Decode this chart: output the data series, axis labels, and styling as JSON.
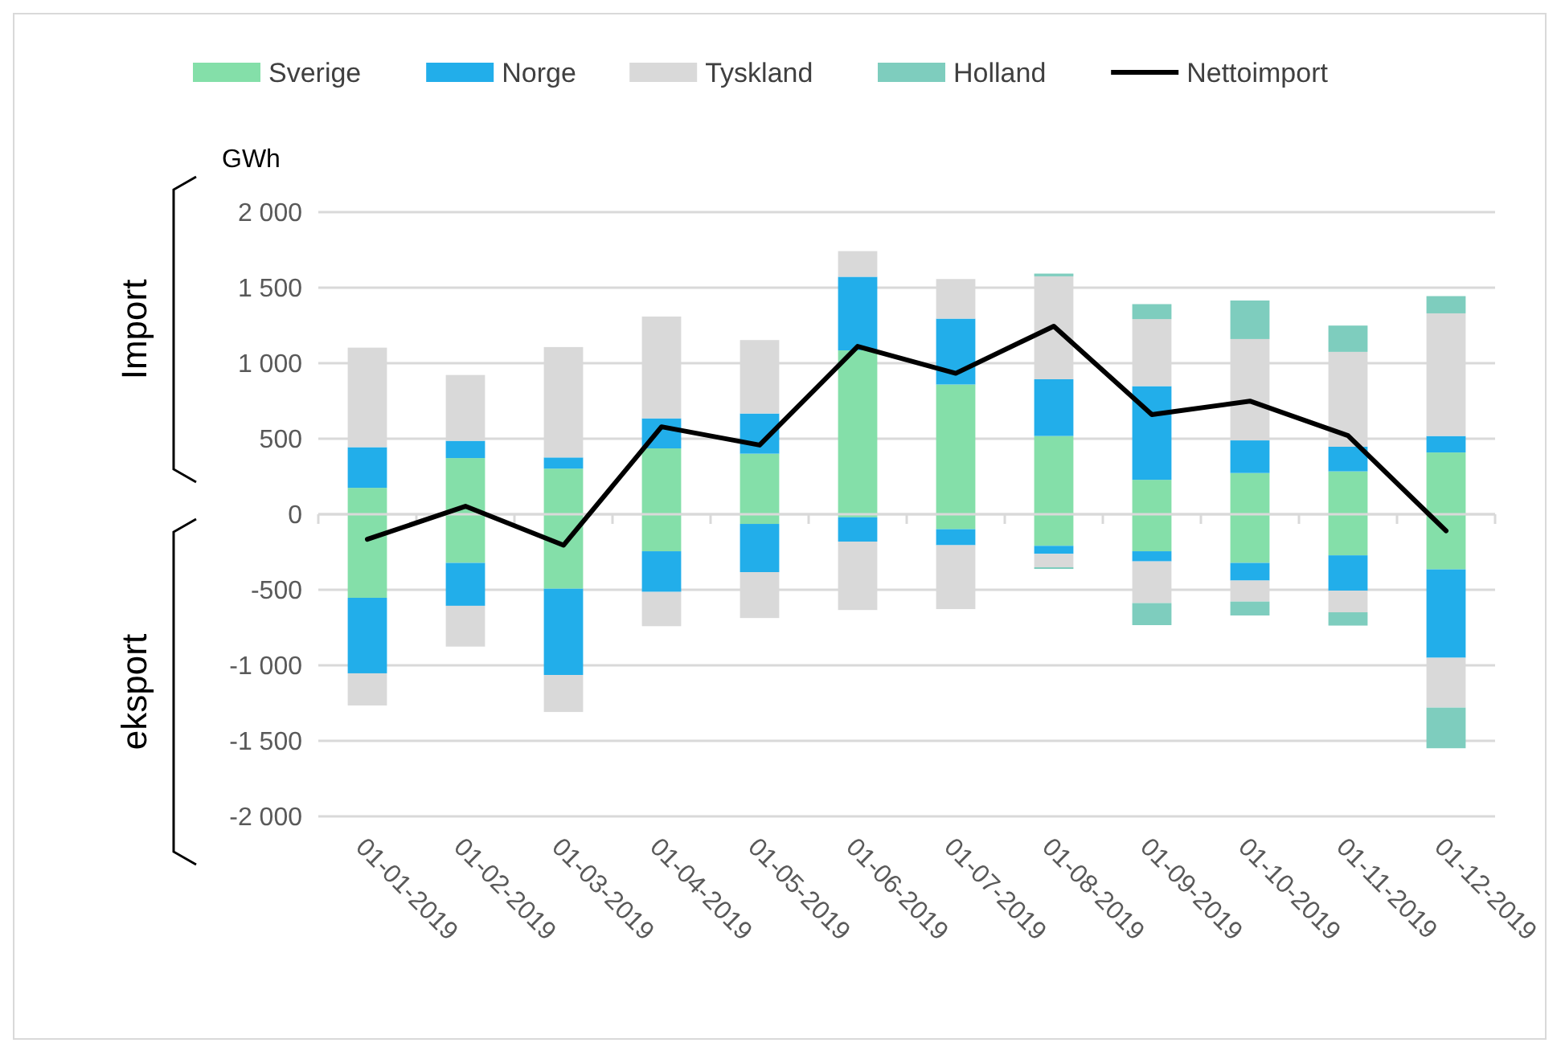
{
  "chart_data": {
    "type": "bar",
    "stacked": true,
    "ylabel": "GWh",
    "legend": "top",
    "grid": "y",
    "line_style": "solid",
    "marker": "none",
    "annotations": [
      "Import",
      "eksport"
    ],
    "categories": [
      "01-01-2019",
      "01-02-2019",
      "01-03-2019",
      "01-04-2019",
      "01-05-2019",
      "01-06-2019",
      "01-07-2019",
      "01-08-2019",
      "01-09-2019",
      "01-10-2019",
      "01-11-2019",
      "01-12-2019"
    ],
    "ylim": [
      -2000,
      2000
    ],
    "yticks": [
      {
        "value": -2000,
        "label": "-2 000"
      },
      {
        "value": -1500,
        "label": "-1 500"
      },
      {
        "value": -1000,
        "label": "-1 000"
      },
      -500,
      0,
      500,
      {
        "value": 1000,
        "label": "1 000"
      },
      {
        "value": 1500,
        "label": "1 500"
      },
      {
        "value": 2000,
        "label": "2 000"
      }
    ],
    "series": [
      {
        "name": "Sverige",
        "color": "#84dfa9",
        "values": [
          175,
          372,
          302,
          436,
          401,
          1085,
          859,
          518,
          228,
          273,
          284,
          409
        ]
      },
      {
        "name": "Norge",
        "color": "#22aeea",
        "values": [
          269,
          114,
          74,
          199,
          266,
          487,
          436,
          376,
          620,
          216,
          163,
          109
        ]
      },
      {
        "name": "Tyskland",
        "color": "#d9d9d9",
        "values": [
          659,
          436,
          731,
          674,
          486,
          170,
          262,
          681,
          444,
          671,
          628,
          812
        ]
      },
      {
        "name": "Holland",
        "color": "#7ecdbe",
        "values": [
          0,
          0,
          0,
          0,
          0,
          0,
          0,
          18,
          99,
          255,
          174,
          114
        ]
      },
      {
        "color": "#84dfa9",
        "values": [
          -553,
          -322,
          -493,
          -245,
          -64,
          -20,
          -99,
          -209,
          -245,
          -322,
          -272,
          -365
        ]
      },
      {
        "color": "#22aeea",
        "values": [
          -500,
          -284,
          -571,
          -269,
          -319,
          -161,
          -106,
          -53,
          -67,
          -117,
          -234,
          -585
        ]
      },
      {
        "color": "#d9d9d9",
        "values": [
          -213,
          -270,
          -245,
          -227,
          -304,
          -453,
          -423,
          -89,
          -276,
          -139,
          -143,
          -330
        ]
      },
      {
        "color": "#7ecdbe",
        "values": [
          0,
          0,
          0,
          0,
          0,
          0,
          0,
          -11,
          -146,
          -92,
          -88,
          -269
        ]
      },
      {
        "name": "Nettoimport",
        "type": "line",
        "color": "#000000",
        "values": [
          -166,
          53,
          -205,
          579,
          458,
          1111,
          933,
          1245,
          660,
          749,
          521,
          -110
        ]
      }
    ]
  }
}
